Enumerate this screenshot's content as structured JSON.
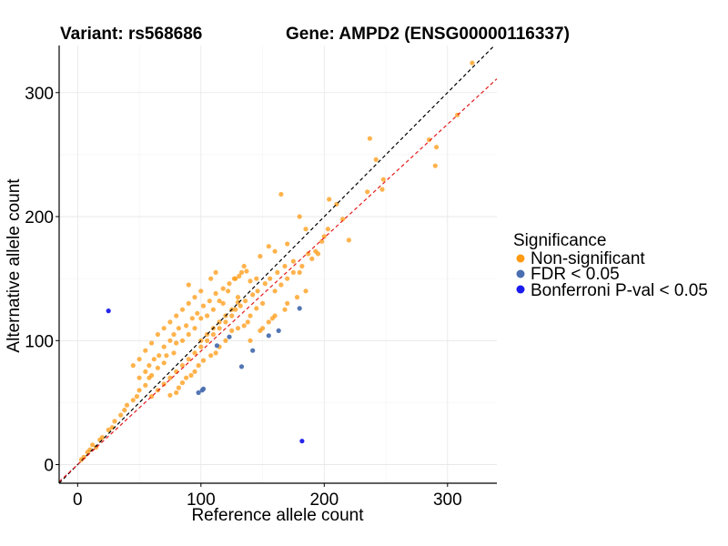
{
  "chart_data": {
    "type": "scatter",
    "title_variant": "Variant: rs568686",
    "title_gene": "Gene: AMPD2 (ENSG00000116337)",
    "xlabel": "Reference allele count",
    "ylabel": "Alternative allele count",
    "xlim": [
      -15,
      340
    ],
    "ylim": [
      -15,
      338
    ],
    "xticks": [
      0,
      100,
      200,
      300
    ],
    "yticks": [
      0,
      100,
      200,
      300
    ],
    "grid": true,
    "reference_lines": [
      {
        "name": "identity",
        "slope": 1.0,
        "intercept": 0,
        "color": "#000000",
        "style": "dashed"
      },
      {
        "name": "fit",
        "slope": 0.915,
        "intercept": 0,
        "color": "#e41a1c",
        "style": "dashed"
      }
    ],
    "legend": {
      "title": "Significance",
      "placement": "right",
      "entries": [
        {
          "label": "Non-significant",
          "color": "#ff9a12"
        },
        {
          "label": "FDR < 0.05",
          "color": "#4a6fb0"
        },
        {
          "label": "Bonferroni P-val < 0.05",
          "color": "#1a1aee"
        }
      ]
    },
    "series": [
      {
        "name": "Non-significant",
        "color": "#ff9a12",
        "points": [
          [
            320,
            324
          ],
          [
            308,
            282
          ],
          [
            291,
            256
          ],
          [
            290,
            241
          ],
          [
            285,
            262
          ],
          [
            237,
            263
          ],
          [
            248,
            230
          ],
          [
            247,
            222
          ],
          [
            235,
            220
          ],
          [
            242,
            246
          ],
          [
            204,
            214
          ],
          [
            210,
            210
          ],
          [
            203,
            190
          ],
          [
            215,
            198
          ],
          [
            220,
            181
          ],
          [
            165,
            218
          ],
          [
            200,
            184
          ],
          [
            193,
            172
          ],
          [
            180,
            155
          ],
          [
            187,
            170
          ],
          [
            175,
            164
          ],
          [
            170,
            178
          ],
          [
            155,
            176
          ],
          [
            160,
            172
          ],
          [
            148,
            168
          ],
          [
            135,
            160
          ],
          [
            133,
            155
          ],
          [
            128,
            150
          ],
          [
            140,
            148
          ],
          [
            145,
            150
          ],
          [
            130,
            131
          ],
          [
            122,
            140
          ],
          [
            118,
            130
          ],
          [
            115,
            132
          ],
          [
            110,
            125
          ],
          [
            105,
            120
          ],
          [
            100,
            118
          ],
          [
            95,
            110
          ],
          [
            90,
            105
          ],
          [
            85,
            100
          ],
          [
            80,
            98
          ],
          [
            78,
            90
          ],
          [
            72,
            88
          ],
          [
            70,
            82
          ],
          [
            65,
            78
          ],
          [
            60,
            72
          ],
          [
            58,
            70
          ],
          [
            55,
            64
          ],
          [
            50,
            60
          ],
          [
            48,
            55
          ],
          [
            45,
            52
          ],
          [
            40,
            48
          ],
          [
            38,
            44
          ],
          [
            35,
            40
          ],
          [
            30,
            35
          ],
          [
            28,
            30
          ],
          [
            25,
            28
          ],
          [
            20,
            22
          ],
          [
            18,
            20
          ],
          [
            15,
            14
          ],
          [
            12,
            16
          ],
          [
            10,
            12
          ],
          [
            8,
            10
          ],
          [
            5,
            6
          ],
          [
            3,
            4
          ],
          [
            130,
            110
          ],
          [
            125,
            108
          ],
          [
            120,
            100
          ],
          [
            115,
            95
          ],
          [
            112,
            90
          ],
          [
            108,
            88
          ],
          [
            102,
            84
          ],
          [
            98,
            80
          ],
          [
            95,
            75
          ],
          [
            92,
            72
          ],
          [
            88,
            70
          ],
          [
            85,
            66
          ],
          [
            82,
            62
          ],
          [
            80,
            58
          ],
          [
            75,
            56
          ],
          [
            150,
            130
          ],
          [
            145,
            126
          ],
          [
            140,
            120
          ],
          [
            138,
            115
          ],
          [
            135,
            112
          ],
          [
            160,
            140
          ],
          [
            165,
            145
          ],
          [
            170,
            150
          ],
          [
            175,
            155
          ],
          [
            182,
            160
          ],
          [
            190,
            166
          ],
          [
            195,
            170
          ],
          [
            198,
            180
          ],
          [
            185,
            190
          ],
          [
            180,
            200
          ],
          [
            90,
            130
          ],
          [
            85,
            125
          ],
          [
            80,
            120
          ],
          [
            75,
            115
          ],
          [
            70,
            110
          ],
          [
            65,
            105
          ],
          [
            60,
            98
          ],
          [
            55,
            92
          ],
          [
            50,
            85
          ],
          [
            45,
            80
          ],
          [
            100,
            95
          ],
          [
            105,
            100
          ],
          [
            110,
            105
          ],
          [
            115,
            110
          ],
          [
            120,
            115
          ],
          [
            125,
            120
          ],
          [
            128,
            125
          ],
          [
            132,
            128
          ],
          [
            136,
            132
          ],
          [
            142,
            137
          ],
          [
            146,
            140
          ],
          [
            152,
            146
          ],
          [
            156,
            150
          ],
          [
            162,
            155
          ],
          [
            168,
            160
          ],
          [
            60,
            55
          ],
          [
            65,
            60
          ],
          [
            70,
            65
          ],
          [
            75,
            70
          ],
          [
            80,
            75
          ],
          [
            85,
            80
          ],
          [
            90,
            85
          ],
          [
            95,
            90
          ],
          [
            100,
            100
          ],
          [
            105,
            105
          ],
          [
            110,
            110
          ],
          [
            115,
            115
          ],
          [
            120,
            120
          ],
          [
            125,
            125
          ],
          [
            130,
            135
          ],
          [
            70,
            95
          ],
          [
            75,
            100
          ],
          [
            78,
            105
          ],
          [
            82,
            110
          ],
          [
            88,
            112
          ],
          [
            93,
            118
          ],
          [
            97,
            122
          ],
          [
            102,
            128
          ],
          [
            107,
            132
          ],
          [
            112,
            138
          ],
          [
            118,
            142
          ],
          [
            123,
            146
          ],
          [
            127,
            150
          ],
          [
            131,
            152
          ],
          [
            137,
            156
          ],
          [
            50,
            70
          ],
          [
            55,
            75
          ],
          [
            58,
            80
          ],
          [
            62,
            85
          ],
          [
            66,
            88
          ],
          [
            100,
            140
          ],
          [
            95,
            135
          ],
          [
            90,
            145
          ],
          [
            108,
            150
          ],
          [
            112,
            155
          ],
          [
            140,
            100
          ],
          [
            150,
            110
          ],
          [
            155,
            115
          ],
          [
            160,
            120
          ],
          [
            170,
            130
          ],
          [
            185,
            140
          ],
          [
            178,
            135
          ],
          [
            168,
            125
          ],
          [
            158,
            118
          ],
          [
            148,
            108
          ]
        ]
      },
      {
        "name": "FDR < 0.05",
        "color": "#4a6fb0",
        "points": [
          [
            98,
            58
          ],
          [
            101,
            60
          ],
          [
            102,
            61
          ],
          [
            133,
            79
          ],
          [
            142,
            92
          ],
          [
            155,
            104
          ],
          [
            163,
            108
          ],
          [
            180,
            126
          ],
          [
            123,
            103
          ],
          [
            113,
            96
          ]
        ]
      },
      {
        "name": "Bonferroni P-val < 0.05",
        "color": "#1a1aee",
        "points": [
          [
            25,
            124
          ],
          [
            182,
            19
          ]
        ]
      }
    ]
  }
}
